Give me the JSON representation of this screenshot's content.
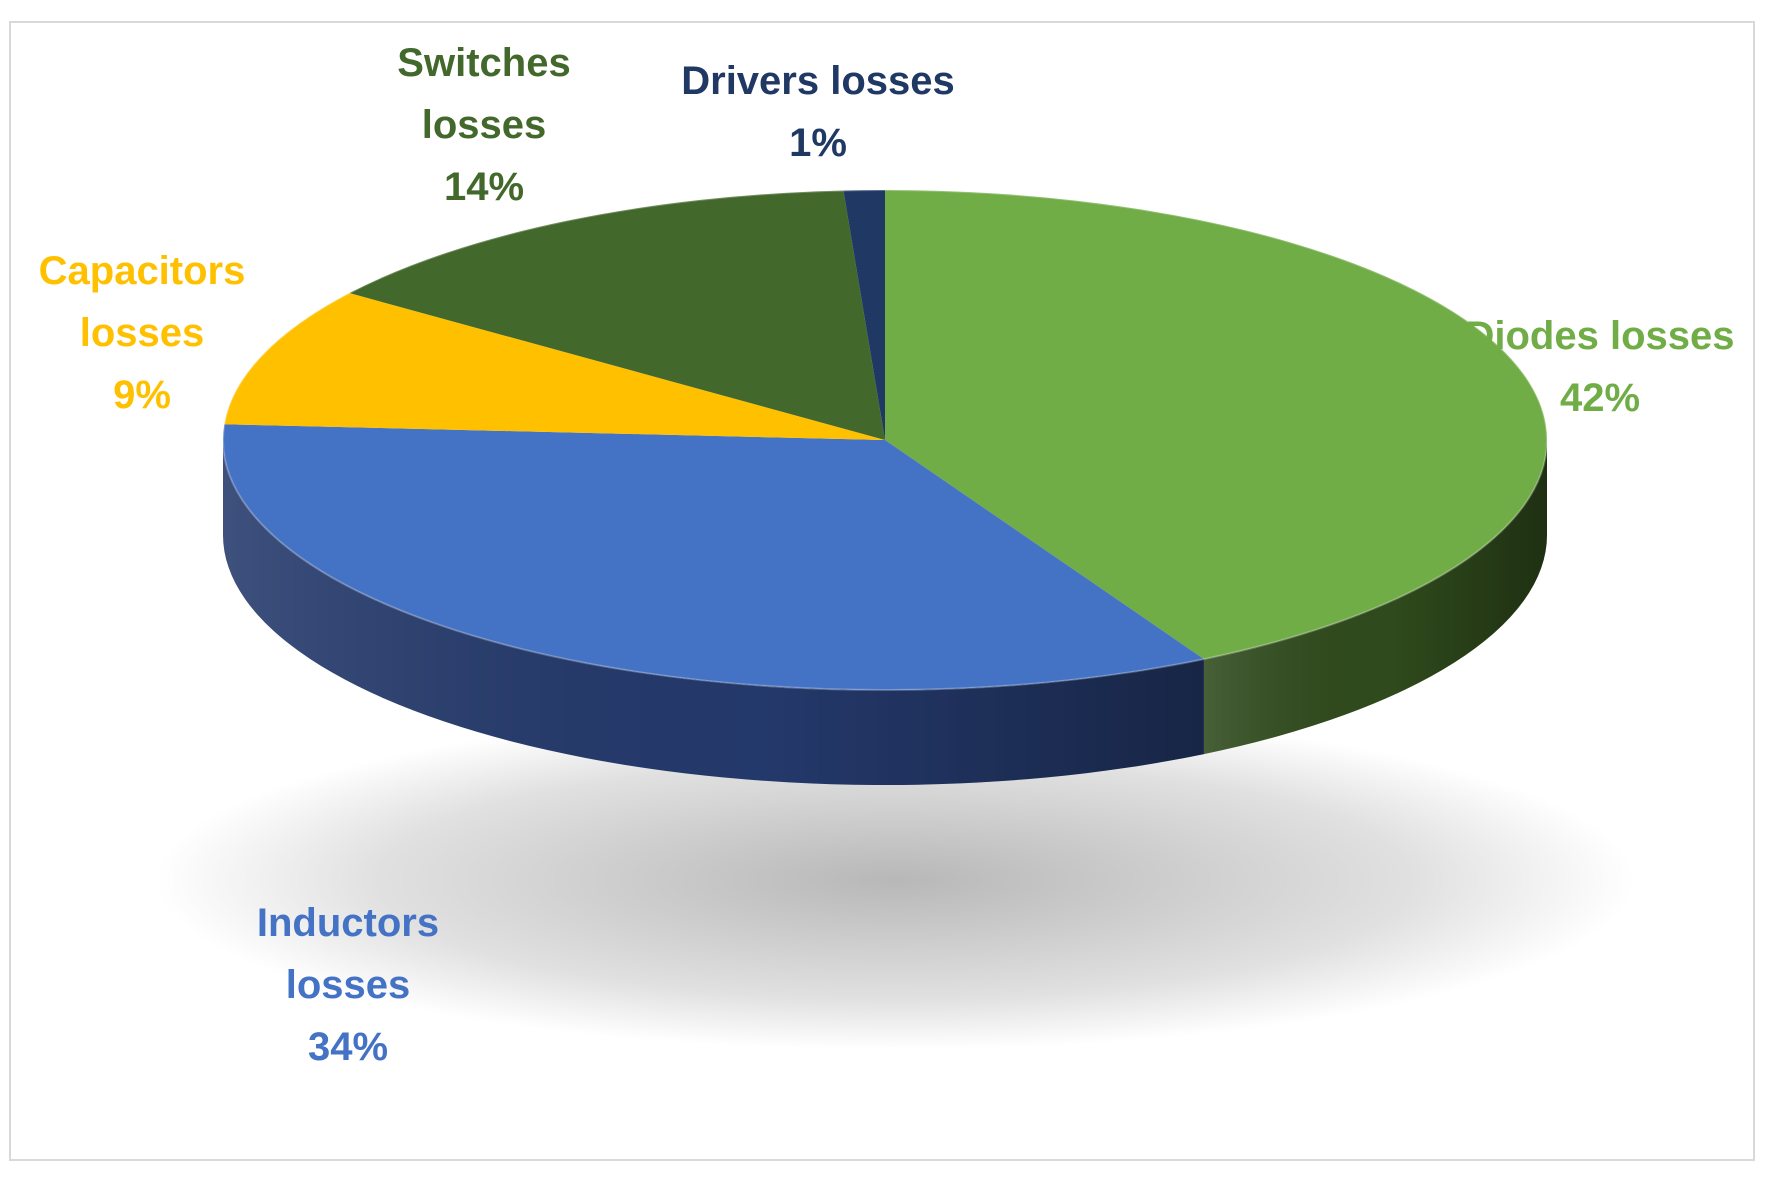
{
  "chart_data": {
    "type": "pie",
    "style": "3d",
    "title": "",
    "slices": [
      {
        "label": "Diodes losses",
        "name_lines": [
          "Diodes losses"
        ],
        "percent_text": "42%",
        "value": 42,
        "color": "#70ad47",
        "side_color": "#2f4a1c"
      },
      {
        "label": "Inductors losses",
        "name_lines": [
          "Inductors",
          "losses"
        ],
        "percent_text": "34%",
        "value": 34,
        "color": "#4472c4",
        "side_color": "#24396b"
      },
      {
        "label": "Capacitors losses",
        "name_lines": [
          "Capacitors",
          "losses"
        ],
        "percent_text": "9%",
        "value": 9,
        "color": "#ffc000",
        "side_color": "#9a7300"
      },
      {
        "label": "Switches losses",
        "name_lines": [
          "Switches",
          "losses"
        ],
        "percent_text": "14%",
        "value": 14,
        "color": "#43682b",
        "side_color": "#263d18"
      },
      {
        "label": "Drivers losses",
        "name_lines": [
          "Drivers losses"
        ],
        "percent_text": "1%",
        "value": 1,
        "color": "#203864",
        "side_color": "#142444"
      }
    ],
    "label_colors": {
      "Diodes losses": "#70ad47",
      "Inductors losses": "#4472c4",
      "Capacitors losses": "#ffc000",
      "Switches losses": "#43682b",
      "Drivers losses": "#203864"
    },
    "legend": "none",
    "labels_position": "outside"
  }
}
